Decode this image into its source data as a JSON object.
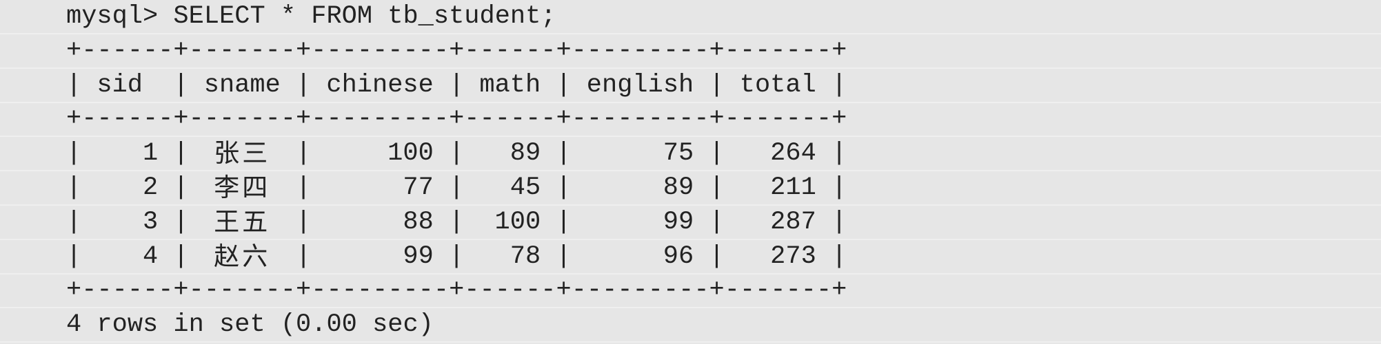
{
  "terminal": {
    "command": "mysql> SELECT * FROM tb_student;",
    "columns": [
      "sid",
      "sname",
      "chinese",
      "math",
      "english",
      "total"
    ],
    "rows": [
      [
        "1",
        "张三",
        "100",
        "89",
        "75",
        "264"
      ],
      [
        "2",
        "李四",
        "77",
        "45",
        "89",
        "211"
      ],
      [
        "3",
        "王五",
        "88",
        "100",
        "99",
        "287"
      ],
      [
        "4",
        "赵六",
        "99",
        "78",
        "96",
        "273"
      ]
    ],
    "border": "+------+-------+---------+------+---------+-------+",
    "footer": "4 rows in set (0.00 sec)"
  },
  "colors": {
    "background": "#e6e6e6",
    "text": "#222222"
  }
}
